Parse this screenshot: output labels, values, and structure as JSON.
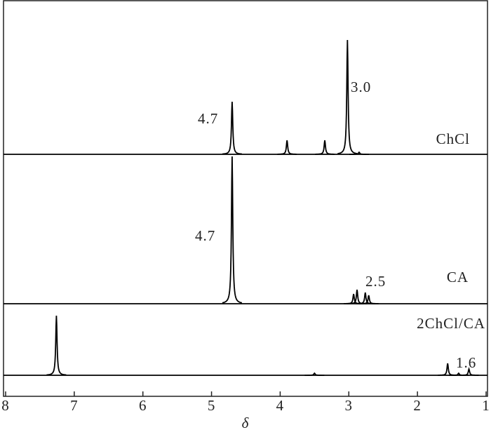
{
  "chart_data": {
    "type": "nmr",
    "xlabel": "δ",
    "xlim": [
      8,
      1
    ],
    "xticks": [
      8,
      7,
      6,
      5,
      4,
      3,
      2,
      1
    ],
    "color": "#000000",
    "series": [
      {
        "name": "ChCl",
        "x": [
          4.7,
          3.9,
          3.35,
          3.02,
          2.85
        ],
        "values": [
          75,
          20,
          20,
          163,
          3
        ]
      },
      {
        "name": "CA",
        "x": [
          4.7,
          2.93,
          2.88,
          2.76,
          2.71
        ],
        "values": [
          210,
          14,
          20,
          16,
          12
        ]
      },
      {
        "name": "2ChCl/CA",
        "x": [
          7.26,
          3.5,
          1.56,
          1.4,
          1.25
        ],
        "values": [
          85,
          3,
          17,
          3,
          9
        ]
      }
    ],
    "annotations": [
      "4.7",
      "3.0",
      "4.7",
      "2.5",
      "1.6"
    ]
  }
}
